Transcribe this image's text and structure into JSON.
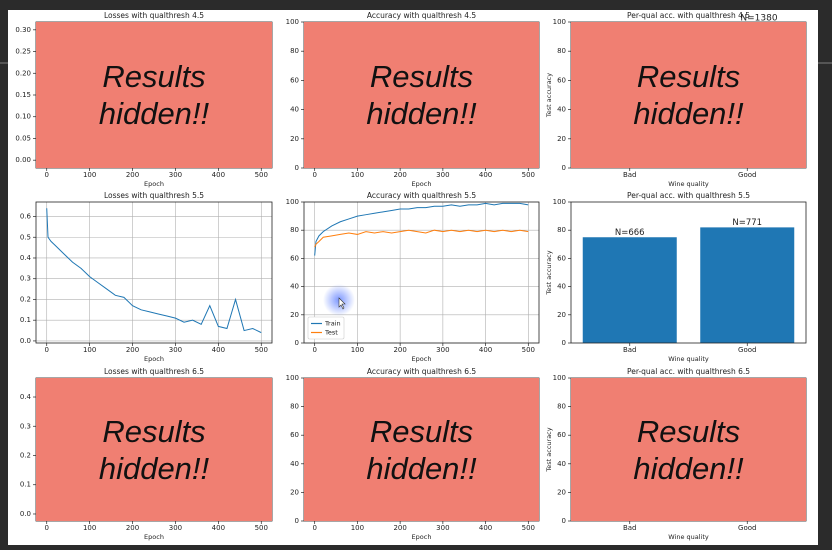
{
  "chart_data": [
    {
      "type": "line",
      "title": "Losses with qualthresh 4.5",
      "xlabel": "Epoch",
      "overlay": "Results hidden!!",
      "xlim": [
        -25,
        525
      ],
      "xticks": [
        0,
        100,
        200,
        300,
        400,
        500
      ],
      "ylim": [
        -0.018,
        0.318
      ],
      "yticks": [
        {
          "value": 0,
          "label": "0.00"
        },
        {
          "value": 0.05,
          "label": "0.05"
        },
        {
          "value": 0.1,
          "label": "0.10"
        },
        {
          "value": 0.15,
          "label": "0.15"
        },
        {
          "value": 0.2,
          "label": "0.20"
        },
        {
          "value": 0.25,
          "label": "0.25"
        },
        {
          "value": 0.3,
          "label": "0.30"
        }
      ],
      "grid": false
    },
    {
      "type": "line",
      "title": "Accuracy with qualthresh 4.5",
      "xlabel": "Epoch",
      "overlay": "Results hidden!!",
      "xlim": [
        -25,
        525
      ],
      "xticks": [
        0,
        100,
        200,
        300,
        400,
        500
      ],
      "ylim": [
        0,
        100
      ],
      "yticks": [
        0,
        20,
        40,
        60,
        80,
        100
      ],
      "grid": false
    },
    {
      "type": "bar",
      "title": "Per-qual acc. with qualthresh 4.5",
      "annotation": "N=1380",
      "xlabel": "Wine quality",
      "ylabel": "Test accuracy",
      "overlay": "Results hidden!!",
      "categories": [
        "Bad",
        "Good"
      ],
      "ylim": [
        0,
        100
      ],
      "yticks": [
        0,
        20,
        40,
        60,
        80,
        100
      ],
      "grid": false
    },
    {
      "type": "line",
      "title": "Losses with qualthresh 5.5",
      "xlabel": "Epoch",
      "xlim": [
        -25,
        525
      ],
      "xticks": [
        0,
        100,
        200,
        300,
        400,
        500
      ],
      "ylim": [
        -0.01,
        0.67
      ],
      "yticks": [
        {
          "value": 0,
          "label": "0.0"
        },
        0.1,
        0.2,
        0.3,
        0.4,
        0.5,
        0.6
      ],
      "grid": true,
      "x": [
        0,
        3,
        10,
        20,
        40,
        60,
        80,
        100,
        120,
        140,
        160,
        180,
        200,
        220,
        240,
        260,
        280,
        300,
        320,
        340,
        360,
        380,
        400,
        420,
        440,
        460,
        480,
        500
      ],
      "series": [
        {
          "color": "#1f77b4",
          "values": [
            0.64,
            0.5,
            0.48,
            0.46,
            0.42,
            0.38,
            0.35,
            0.31,
            0.28,
            0.25,
            0.22,
            0.21,
            0.17,
            0.15,
            0.14,
            0.13,
            0.12,
            0.11,
            0.09,
            0.1,
            0.08,
            0.17,
            0.07,
            0.06,
            0.2,
            0.05,
            0.06,
            0.04
          ]
        }
      ]
    },
    {
      "type": "line",
      "title": "Accuracy with qualthresh 5.5",
      "xlabel": "Epoch",
      "legend": "lower left",
      "xlim": [
        -25,
        525
      ],
      "xticks": [
        0,
        100,
        200,
        300,
        400,
        500
      ],
      "ylim": [
        0,
        100
      ],
      "yticks": [
        0,
        20,
        40,
        60,
        80,
        100
      ],
      "grid": true,
      "x": [
        0,
        3,
        10,
        20,
        40,
        60,
        80,
        100,
        120,
        140,
        160,
        180,
        200,
        220,
        240,
        260,
        280,
        300,
        320,
        340,
        360,
        380,
        400,
        420,
        440,
        460,
        480,
        500
      ],
      "series": [
        {
          "name": "Train",
          "color": "#1f77b4",
          "values": [
            62,
            72,
            76,
            79,
            83,
            86,
            88,
            90,
            91,
            92,
            93,
            94,
            95,
            95,
            96,
            96,
            97,
            97,
            98,
            97,
            98,
            98,
            99,
            98,
            99,
            99,
            99,
            98
          ]
        },
        {
          "name": "Test",
          "color": "#ff7f0e",
          "values": [
            68,
            70,
            72,
            75,
            76,
            77,
            78,
            77,
            79,
            78,
            79,
            78,
            79,
            80,
            79,
            78,
            80,
            79,
            80,
            79,
            80,
            79,
            80,
            79,
            80,
            79,
            80,
            79
          ]
        }
      ]
    },
    {
      "type": "bar",
      "title": "Per-qual acc. with qualthresh 5.5",
      "xlabel": "Wine quality",
      "ylabel": "Test accuracy",
      "categories": [
        "Bad",
        "Good"
      ],
      "values": [
        75,
        82
      ],
      "value_labels": [
        "N=666",
        "N=771"
      ],
      "color": "#1f77b4",
      "ylim": [
        0,
        100
      ],
      "yticks": [
        0,
        20,
        40,
        60,
        80,
        100
      ],
      "grid": false
    },
    {
      "type": "line",
      "title": "Losses with qualthresh 6.5",
      "xlabel": "Epoch",
      "overlay": "Results hidden!!",
      "xlim": [
        -25,
        525
      ],
      "xticks": [
        0,
        100,
        200,
        300,
        400,
        500
      ],
      "ylim": [
        -0.024,
        0.465
      ],
      "yticks": [
        {
          "value": 0,
          "label": "0.0"
        },
        0.1,
        0.2,
        0.3,
        0.4
      ],
      "grid": false
    },
    {
      "type": "line",
      "title": "Accuracy with qualthresh 6.5",
      "xlabel": "Epoch",
      "overlay": "Results hidden!!",
      "xlim": [
        -25,
        525
      ],
      "xticks": [
        0,
        100,
        200,
        300,
        400,
        500
      ],
      "ylim": [
        0,
        100
      ],
      "yticks": [
        0,
        20,
        40,
        60,
        80,
        100
      ],
      "grid": false
    },
    {
      "type": "bar",
      "title": "Per-qual acc. with qualthresh 6.5",
      "xlabel": "Wine quality",
      "ylabel": "Test accuracy",
      "overlay": "Results hidden!!",
      "categories": [
        "Bad",
        "Good"
      ],
      "ylim": [
        0,
        100
      ],
      "yticks": [
        0,
        20,
        40,
        60,
        80,
        100
      ],
      "grid": false
    }
  ]
}
